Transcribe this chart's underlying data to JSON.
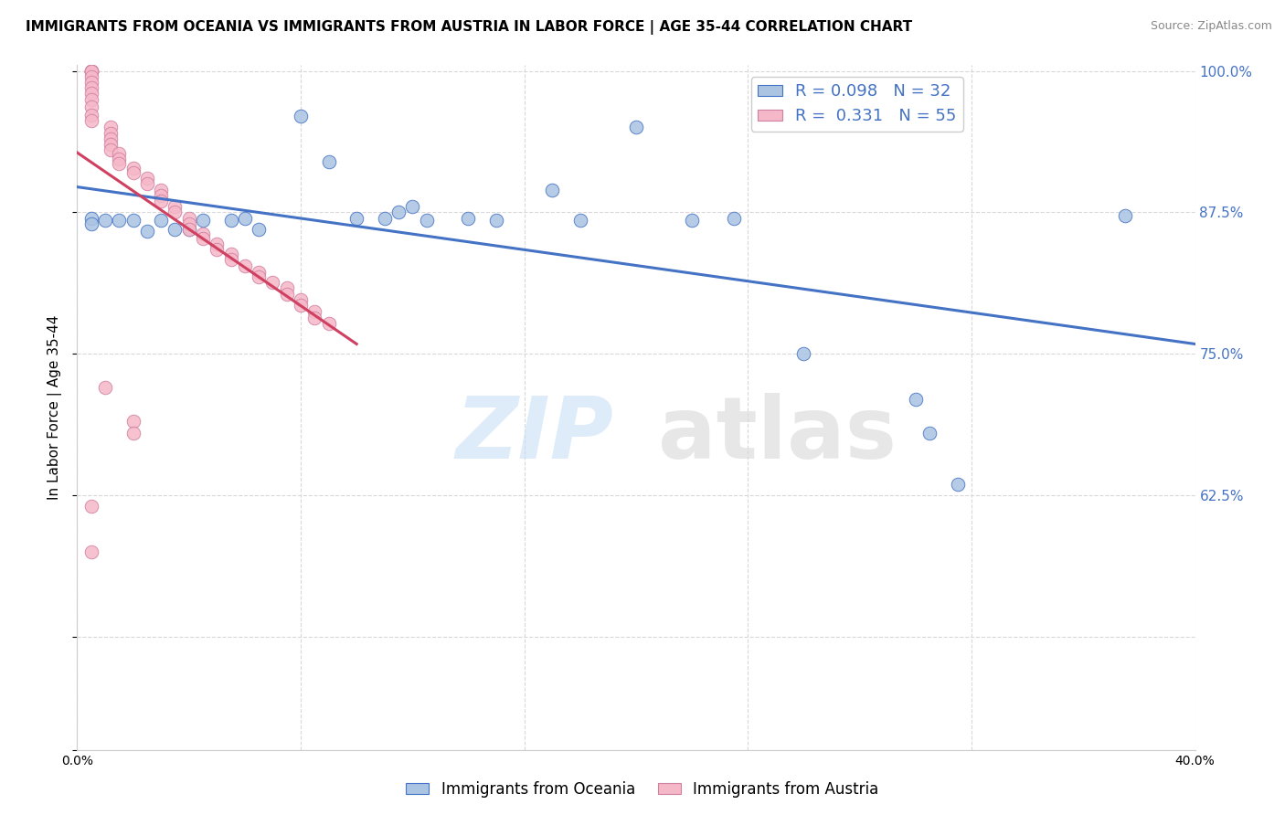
{
  "title": "IMMIGRANTS FROM OCEANIA VS IMMIGRANTS FROM AUSTRIA IN LABOR FORCE | AGE 35-44 CORRELATION CHART",
  "source": "Source: ZipAtlas.com",
  "ylabel": "In Labor Force | Age 35-44",
  "xlim": [
    0.0,
    0.4
  ],
  "ylim": [
    0.4,
    1.005
  ],
  "legend_R_oceania": "0.098",
  "legend_N_oceania": "32",
  "legend_R_austria": "0.331",
  "legend_N_austria": "55",
  "color_oceania": "#aac4e2",
  "color_austria": "#f5b8c8",
  "trendline_oceania_color": "#4472c4",
  "trendline_austria_color": "#d04060",
  "watermark_zip": "ZIP",
  "watermark_atlas": "atlas",
  "oceania_x": [
    0.005,
    0.005,
    0.01,
    0.015,
    0.02,
    0.025,
    0.03,
    0.035,
    0.04,
    0.045,
    0.055,
    0.06,
    0.065,
    0.08,
    0.09,
    0.1,
    0.11,
    0.115,
    0.12,
    0.125,
    0.14,
    0.15,
    0.17,
    0.18,
    0.2,
    0.22,
    0.235,
    0.26,
    0.3,
    0.305,
    0.315,
    0.375
  ],
  "oceania_y": [
    0.87,
    0.865,
    0.868,
    0.868,
    0.868,
    0.858,
    0.868,
    0.86,
    0.86,
    0.868,
    0.868,
    0.87,
    0.86,
    0.96,
    0.92,
    0.87,
    0.87,
    0.875,
    0.88,
    0.868,
    0.87,
    0.868,
    0.895,
    0.868,
    0.95,
    0.868,
    0.87,
    0.75,
    0.71,
    0.68,
    0.635,
    0.872
  ],
  "austria_x": [
    0.005,
    0.005,
    0.005,
    0.005,
    0.005,
    0.005,
    0.005,
    0.005,
    0.005,
    0.005,
    0.005,
    0.005,
    0.005,
    0.012,
    0.012,
    0.012,
    0.012,
    0.012,
    0.015,
    0.015,
    0.015,
    0.02,
    0.02,
    0.025,
    0.025,
    0.03,
    0.03,
    0.03,
    0.035,
    0.035,
    0.04,
    0.04,
    0.04,
    0.045,
    0.045,
    0.05,
    0.05,
    0.055,
    0.055,
    0.06,
    0.065,
    0.065,
    0.07,
    0.075,
    0.075,
    0.08,
    0.08,
    0.085,
    0.085,
    0.09,
    0.01,
    0.02,
    0.02,
    0.005,
    0.005
  ],
  "austria_y": [
    1.0,
    1.0,
    1.0,
    1.0,
    1.0,
    0.995,
    0.99,
    0.985,
    0.98,
    0.975,
    0.968,
    0.961,
    0.956,
    0.95,
    0.945,
    0.94,
    0.935,
    0.93,
    0.927,
    0.922,
    0.918,
    0.914,
    0.91,
    0.905,
    0.9,
    0.895,
    0.89,
    0.885,
    0.88,
    0.875,
    0.87,
    0.865,
    0.86,
    0.856,
    0.852,
    0.847,
    0.842,
    0.838,
    0.833,
    0.828,
    0.822,
    0.818,
    0.813,
    0.808,
    0.803,
    0.798,
    0.793,
    0.787,
    0.782,
    0.777,
    0.72,
    0.69,
    0.68,
    0.615,
    0.575
  ]
}
